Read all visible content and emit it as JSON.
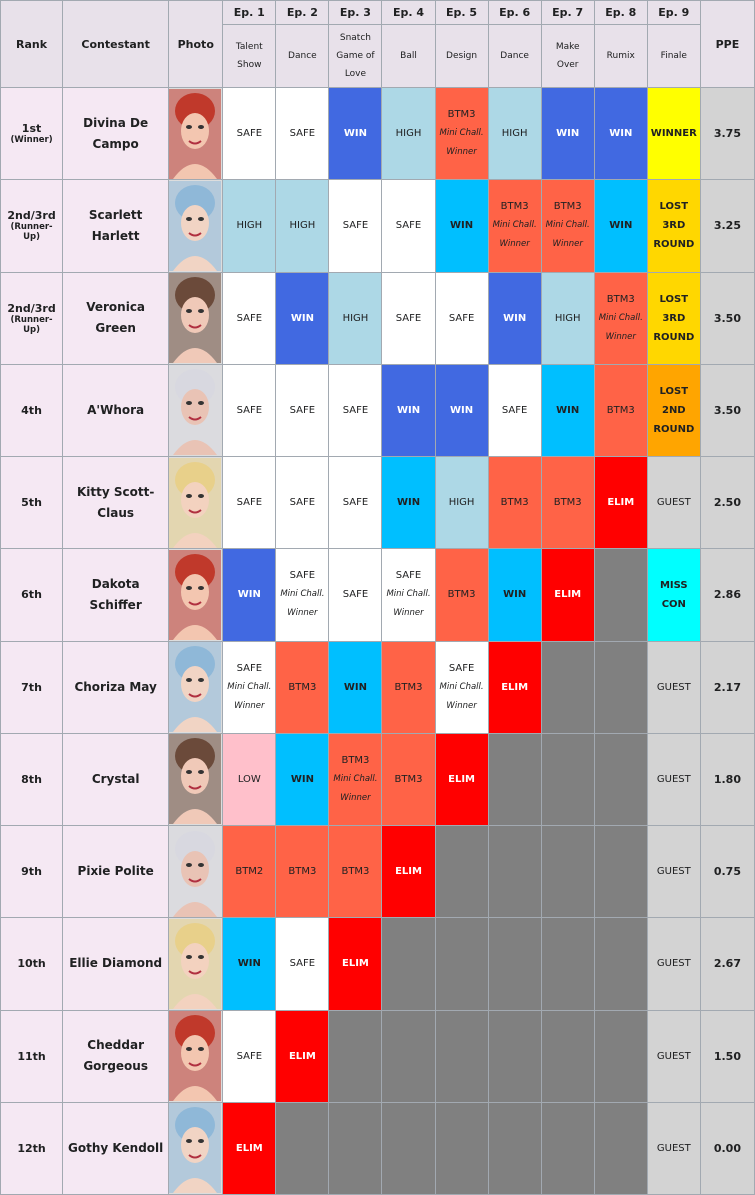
{
  "header": {
    "rank": "Rank",
    "contestant": "Contestant",
    "photo": "Photo",
    "ppe": "PPE",
    "episodes": [
      {
        "number": "Ep. 1",
        "theme": "Talent Show"
      },
      {
        "number": "Ep. 2",
        "theme": "Dance"
      },
      {
        "number": "Ep. 3",
        "theme": "Snatch Game of Love"
      },
      {
        "number": "Ep. 4",
        "theme": "Ball"
      },
      {
        "number": "Ep. 5",
        "theme": "Design"
      },
      {
        "number": "Ep. 6",
        "theme": "Dance"
      },
      {
        "number": "Ep. 7",
        "theme": "Make Over"
      },
      {
        "number": "Ep. 8",
        "theme": "Rumix"
      },
      {
        "number": "Ep. 9",
        "theme": "Finale"
      }
    ]
  },
  "rows": [
    {
      "rank": "1st",
      "rank_note": "(Winner)",
      "name": "Divina De Campo",
      "ppe": "3.75",
      "cells": [
        {
          "result": "SAFE",
          "color": "#ffffff"
        },
        {
          "result": "SAFE",
          "color": "#ffffff"
        },
        {
          "result": "WIN",
          "color": "#4169e1",
          "bold": true
        },
        {
          "result": "HIGH",
          "color": "#add8e6"
        },
        {
          "result": "BTM3",
          "note": "Mini Chall. Winner",
          "color": "#ff6347"
        },
        {
          "result": "HIGH",
          "color": "#add8e6"
        },
        {
          "result": "WIN",
          "color": "#4169e1",
          "bold": true
        },
        {
          "result": "WIN",
          "color": "#4169e1",
          "bold": true
        },
        {
          "result": "WINNER",
          "color": "#ffff00",
          "bold": true
        }
      ]
    },
    {
      "rank": "2nd/3rd",
      "rank_note": "(Runner-Up)",
      "name": "Scarlett Harlett",
      "ppe": "3.25",
      "cells": [
        {
          "result": "HIGH",
          "color": "#add8e6"
        },
        {
          "result": "HIGH",
          "color": "#add8e6"
        },
        {
          "result": "SAFE",
          "color": "#ffffff"
        },
        {
          "result": "SAFE",
          "color": "#ffffff"
        },
        {
          "result": "WIN",
          "color": "#00bfff",
          "bold": true
        },
        {
          "result": "BTM3",
          "note": "Mini Chall. Winner",
          "color": "#ff6347"
        },
        {
          "result": "BTM3",
          "note": "Mini Chall. Winner",
          "color": "#ff6347"
        },
        {
          "result": "WIN",
          "color": "#00bfff",
          "bold": true
        },
        {
          "result": "LOST 3RD ROUND",
          "color": "#ffd700",
          "bold": true
        }
      ]
    },
    {
      "rank": "2nd/3rd",
      "rank_note": "(Runner-Up)",
      "name": "Veronica Green",
      "ppe": "3.50",
      "cells": [
        {
          "result": "SAFE",
          "color": "#ffffff"
        },
        {
          "result": "WIN",
          "color": "#4169e1",
          "bold": true
        },
        {
          "result": "HIGH",
          "color": "#add8e6"
        },
        {
          "result": "SAFE",
          "color": "#ffffff"
        },
        {
          "result": "SAFE",
          "color": "#ffffff"
        },
        {
          "result": "WIN",
          "color": "#4169e1",
          "bold": true
        },
        {
          "result": "HIGH",
          "color": "#add8e6"
        },
        {
          "result": "BTM3",
          "note": "Mini Chall. Winner",
          "color": "#ff6347"
        },
        {
          "result": "LOST 3RD ROUND",
          "color": "#ffd700",
          "bold": true
        }
      ]
    },
    {
      "rank": "4th",
      "name": "A'Whora",
      "ppe": "3.50",
      "cells": [
        {
          "result": "SAFE",
          "color": "#ffffff"
        },
        {
          "result": "SAFE",
          "color": "#ffffff"
        },
        {
          "result": "SAFE",
          "color": "#ffffff"
        },
        {
          "result": "WIN",
          "color": "#4169e1",
          "bold": true
        },
        {
          "result": "WIN",
          "color": "#4169e1",
          "bold": true
        },
        {
          "result": "SAFE",
          "color": "#ffffff"
        },
        {
          "result": "WIN",
          "color": "#00bfff",
          "bold": true
        },
        {
          "result": "BTM3",
          "color": "#ff6347"
        },
        {
          "result": "LOST 2ND ROUND",
          "color": "#ffa500",
          "bold": true
        }
      ]
    },
    {
      "rank": "5th",
      "name": "Kitty Scott-Claus",
      "ppe": "2.50",
      "cells": [
        {
          "result": "SAFE",
          "color": "#ffffff"
        },
        {
          "result": "SAFE",
          "color": "#ffffff"
        },
        {
          "result": "SAFE",
          "color": "#ffffff"
        },
        {
          "result": "WIN",
          "color": "#00bfff",
          "bold": true
        },
        {
          "result": "HIGH",
          "color": "#add8e6"
        },
        {
          "result": "BTM3",
          "color": "#ff6347"
        },
        {
          "result": "BTM3",
          "color": "#ff6347"
        },
        {
          "result": "ELIM",
          "color": "#ff0000",
          "bold": true
        },
        {
          "result": "GUEST",
          "color": "#d3d3d3"
        }
      ]
    },
    {
      "rank": "6th",
      "name": "Dakota Schiffer",
      "ppe": "2.86",
      "cells": [
        {
          "result": "WIN",
          "color": "#4169e1",
          "bold": true
        },
        {
          "result": "SAFE",
          "note": "Mini Chall. Winner",
          "color": "#ffffff"
        },
        {
          "result": "SAFE",
          "color": "#ffffff"
        },
        {
          "result": "SAFE",
          "note": "Mini Chall. Winner",
          "color": "#ffffff"
        },
        {
          "result": "BTM3",
          "color": "#ff6347"
        },
        {
          "result": "WIN",
          "color": "#00bfff",
          "bold": true
        },
        {
          "result": "ELIM",
          "color": "#ff0000",
          "bold": true
        },
        {
          "color": "#808080"
        },
        {
          "result": "MISS CON",
          "color": "#00ffff",
          "bold": true
        }
      ]
    },
    {
      "rank": "7th",
      "name": "Choriza May",
      "ppe": "2.17",
      "cells": [
        {
          "result": "SAFE",
          "note": "Mini Chall. Winner",
          "color": "#ffffff"
        },
        {
          "result": "BTM3",
          "color": "#ff6347"
        },
        {
          "result": "WIN",
          "color": "#00bfff",
          "bold": true
        },
        {
          "result": "BTM3",
          "color": "#ff6347"
        },
        {
          "result": "SAFE",
          "note": "Mini Chall. Winner",
          "color": "#ffffff"
        },
        {
          "result": "ELIM",
          "color": "#ff0000",
          "bold": true
        },
        {
          "color": "#808080"
        },
        {
          "color": "#808080"
        },
        {
          "result": "GUEST",
          "color": "#d3d3d3"
        }
      ]
    },
    {
      "rank": "8th",
      "name": "Crystal",
      "ppe": "1.80",
      "cells": [
        {
          "result": "LOW",
          "color": "#ffc0cb"
        },
        {
          "result": "WIN",
          "color": "#00bfff",
          "bold": true
        },
        {
          "result": "BTM3",
          "note": "Mini Chall. Winner",
          "color": "#ff6347"
        },
        {
          "result": "BTM3",
          "color": "#ff6347"
        },
        {
          "result": "ELIM",
          "color": "#ff0000",
          "bold": true
        },
        {
          "color": "#808080"
        },
        {
          "color": "#808080"
        },
        {
          "color": "#808080"
        },
        {
          "result": "GUEST",
          "color": "#d3d3d3"
        }
      ]
    },
    {
      "rank": "9th",
      "name": "Pixie Polite",
      "ppe": "0.75",
      "cells": [
        {
          "result": "BTM2",
          "color": "#ff6347"
        },
        {
          "result": "BTM3",
          "color": "#ff6347"
        },
        {
          "result": "BTM3",
          "color": "#ff6347"
        },
        {
          "result": "ELIM",
          "color": "#ff0000",
          "bold": true
        },
        {
          "color": "#808080"
        },
        {
          "color": "#808080"
        },
        {
          "color": "#808080"
        },
        {
          "color": "#808080"
        },
        {
          "result": "GUEST",
          "color": "#d3d3d3"
        }
      ]
    },
    {
      "rank": "10th",
      "name": "Ellie Diamond",
      "ppe": "2.67",
      "cells": [
        {
          "result": "WIN",
          "color": "#00bfff",
          "bold": true
        },
        {
          "result": "SAFE",
          "color": "#ffffff"
        },
        {
          "result": "ELIM",
          "color": "#ff0000",
          "bold": true
        },
        {
          "color": "#808080"
        },
        {
          "color": "#808080"
        },
        {
          "color": "#808080"
        },
        {
          "color": "#808080"
        },
        {
          "color": "#808080"
        },
        {
          "result": "GUEST",
          "color": "#d3d3d3"
        }
      ]
    },
    {
      "rank": "11th",
      "name": "Cheddar Gorgeous",
      "ppe": "1.50",
      "cells": [
        {
          "result": "SAFE",
          "color": "#ffffff"
        },
        {
          "result": "ELIM",
          "color": "#ff0000",
          "bold": true
        },
        {
          "color": "#808080"
        },
        {
          "color": "#808080"
        },
        {
          "color": "#808080"
        },
        {
          "color": "#808080"
        },
        {
          "color": "#808080"
        },
        {
          "color": "#808080"
        },
        {
          "result": "GUEST",
          "color": "#d3d3d3"
        }
      ]
    },
    {
      "rank": "12th",
      "name": "Gothy Kendoll",
      "ppe": "0.00",
      "cells": [
        {
          "result": "ELIM",
          "color": "#ff0000",
          "bold": true
        },
        {
          "color": "#808080"
        },
        {
          "color": "#808080"
        },
        {
          "color": "#808080"
        },
        {
          "color": "#808080"
        },
        {
          "color": "#808080"
        },
        {
          "color": "#808080"
        },
        {
          "color": "#808080"
        },
        {
          "result": "GUEST",
          "color": "#d3d3d3"
        }
      ]
    }
  ]
}
